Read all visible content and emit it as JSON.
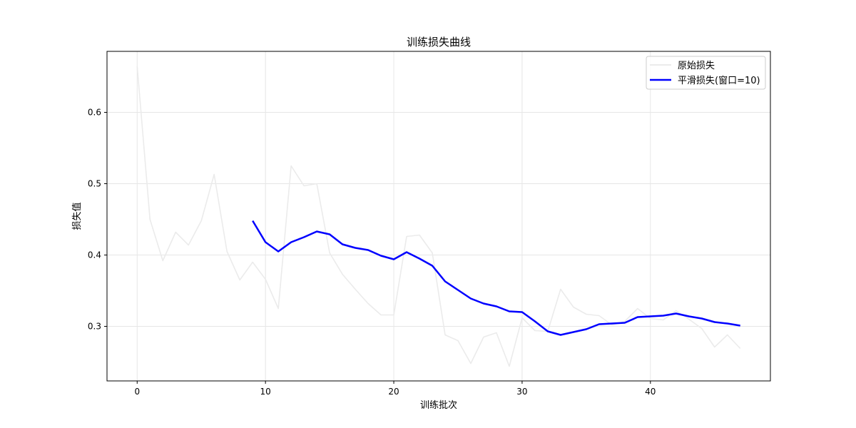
{
  "chart_data": {
    "type": "line",
    "title": "训练损失曲线",
    "xlabel": "训练批次",
    "ylabel": "损失值",
    "xlim": [
      -2.35,
      49.35
    ],
    "ylim": [
      0.2235,
      0.6855
    ],
    "xticks": [
      0,
      10,
      20,
      30,
      40
    ],
    "yticks": [
      0.3,
      0.4,
      0.5,
      0.6
    ],
    "xtick_labels": [
      "0",
      "10",
      "20",
      "30",
      "40"
    ],
    "ytick_labels": [
      "0.3",
      "0.4",
      "0.5",
      "0.6"
    ],
    "grid": true,
    "legend_position": "top-right",
    "series": [
      {
        "name": "原始损失",
        "color": "#ebebeb",
        "x": [
          0,
          1,
          2,
          3,
          4,
          5,
          6,
          7,
          8,
          9,
          10,
          11,
          12,
          13,
          14,
          15,
          16,
          17,
          18,
          19,
          20,
          21,
          22,
          23,
          24,
          25,
          26,
          27,
          28,
          29,
          30,
          31,
          32,
          33,
          34,
          35,
          36,
          37,
          38,
          39,
          40,
          41,
          42,
          43,
          44,
          45,
          46,
          47
        ],
        "values": [
          0.665,
          0.45,
          0.392,
          0.432,
          0.414,
          0.448,
          0.513,
          0.405,
          0.365,
          0.39,
          0.366,
          0.325,
          0.525,
          0.497,
          0.5,
          0.403,
          0.373,
          0.352,
          0.332,
          0.316,
          0.316,
          0.426,
          0.428,
          0.403,
          0.288,
          0.28,
          0.248,
          0.285,
          0.291,
          0.244,
          0.312,
          0.294,
          0.293,
          0.352,
          0.327,
          0.317,
          0.315,
          0.302,
          0.307,
          0.325,
          0.311,
          0.309,
          0.322,
          0.31,
          0.297,
          0.271,
          0.288,
          0.269
        ]
      },
      {
        "name": "平滑损失(窗口=10)",
        "color": "#0000ff",
        "x": [
          9,
          10,
          11,
          12,
          13,
          14,
          15,
          16,
          17,
          18,
          19,
          20,
          21,
          22,
          23,
          24,
          25,
          26,
          27,
          28,
          29,
          30,
          31,
          32,
          33,
          34,
          35,
          36,
          37,
          38,
          39,
          40,
          41,
          42,
          43,
          44,
          45,
          46,
          47
        ],
        "values": [
          0.448,
          0.418,
          0.405,
          0.418,
          0.425,
          0.433,
          0.429,
          0.415,
          0.41,
          0.407,
          0.399,
          0.394,
          0.404,
          0.395,
          0.385,
          0.363,
          0.351,
          0.339,
          0.332,
          0.328,
          0.321,
          0.32,
          0.307,
          0.293,
          0.288,
          0.292,
          0.296,
          0.303,
          0.304,
          0.305,
          0.313,
          0.314,
          0.315,
          0.318,
          0.314,
          0.311,
          0.306,
          0.304,
          0.301
        ]
      }
    ]
  }
}
